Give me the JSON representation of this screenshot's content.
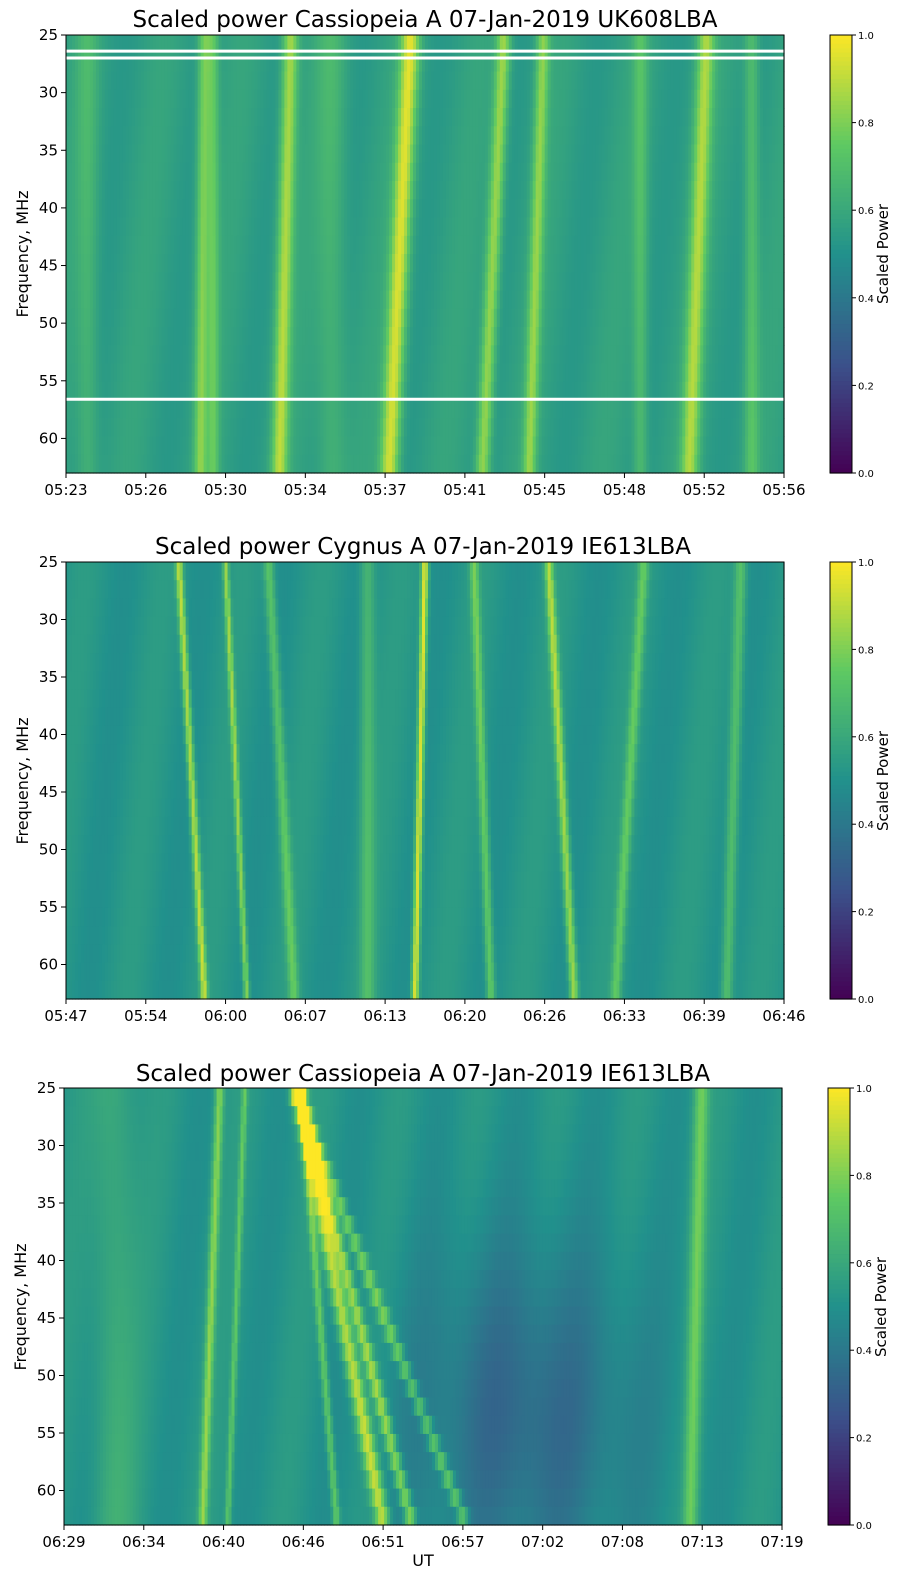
{
  "colormap": [
    "#440154",
    "#3b528b",
    "#21918c",
    "#5ec962",
    "#fde725"
  ],
  "chart_data": [
    {
      "type": "heatmap",
      "title": "Scaled power Cassiopeia A 07-Jan-2019 UK608LBA",
      "xlabel": "",
      "ylabel": "Frequency, MHz",
      "colorbar_label": "Scaled Power",
      "colorbar_ticks": [
        "0.0",
        "0.2",
        "0.4",
        "0.6",
        "0.8",
        "1.0"
      ],
      "clim": [
        0,
        1
      ],
      "ylim": [
        25,
        63
      ],
      "y_inverted": true,
      "y_ticks": [
        "25",
        "30",
        "35",
        "40",
        "45",
        "50",
        "55",
        "60"
      ],
      "x_ticks": [
        "05:23",
        "05:26",
        "05:30",
        "05:34",
        "05:37",
        "05:41",
        "05:45",
        "05:48",
        "05:52",
        "05:56"
      ],
      "background_level": 0.56,
      "rfi_lines_mhz": [
        26.4,
        27.0,
        56.6
      ],
      "stripes": [
        {
          "center": 0.03,
          "width": 0.015,
          "amp": 0.1,
          "slope": 0.0
        },
        {
          "center": 0.19,
          "width": 0.009,
          "amp": 0.25,
          "slope": -0.003
        },
        {
          "center": 0.205,
          "width": 0.008,
          "amp": 0.18,
          "slope": 0.0
        },
        {
          "center": 0.305,
          "width": 0.011,
          "amp": 0.32,
          "slope": -0.008
        },
        {
          "center": 0.37,
          "width": 0.02,
          "amp": 0.1,
          "slope": 0.0
        },
        {
          "center": 0.465,
          "width": 0.013,
          "amp": 0.38,
          "slope": -0.015
        },
        {
          "center": 0.595,
          "width": 0.01,
          "amp": 0.3,
          "slope": -0.015
        },
        {
          "center": 0.655,
          "width": 0.009,
          "amp": 0.26,
          "slope": -0.01
        },
        {
          "center": 0.8,
          "width": 0.01,
          "amp": 0.14,
          "slope": 0.0
        },
        {
          "center": 0.88,
          "width": 0.012,
          "amp": 0.3,
          "slope": -0.012
        },
        {
          "center": 0.955,
          "width": 0.01,
          "amp": 0.15,
          "slope": 0.0
        }
      ]
    },
    {
      "type": "heatmap",
      "title": "Scaled power Cygnus A 07-Jan-2019 IE613LBA",
      "xlabel": "",
      "ylabel": "Frequency, MHz",
      "colorbar_label": "Scaled Power",
      "colorbar_ticks": [
        "0.0",
        "0.2",
        "0.4",
        "0.6",
        "0.8",
        "1.0"
      ],
      "clim": [
        0,
        1
      ],
      "ylim": [
        25,
        63
      ],
      "y_inverted": true,
      "y_ticks": [
        "25",
        "30",
        "35",
        "40",
        "45",
        "50",
        "55",
        "60"
      ],
      "x_ticks": [
        "05:47",
        "05:54",
        "06:00",
        "06:07",
        "06:13",
        "06:20",
        "06:26",
        "06:33",
        "06:39",
        "06:46"
      ],
      "background_level": 0.52,
      "rfi_lines_mhz": [],
      "stripes": [
        {
          "center": 0.175,
          "width": 0.005,
          "amp": 0.38,
          "slope": 0.018
        },
        {
          "center": 0.237,
          "width": 0.004,
          "amp": 0.32,
          "slope": 0.015
        },
        {
          "center": 0.3,
          "width": 0.007,
          "amp": 0.22,
          "slope": 0.018
        },
        {
          "center": 0.42,
          "width": 0.01,
          "amp": 0.16,
          "slope": 0.0
        },
        {
          "center": 0.493,
          "width": 0.005,
          "amp": 0.45,
          "slope": -0.007
        },
        {
          "center": 0.58,
          "width": 0.006,
          "amp": 0.25,
          "slope": 0.012
        },
        {
          "center": 0.69,
          "width": 0.006,
          "amp": 0.35,
          "slope": 0.018
        },
        {
          "center": 0.785,
          "width": 0.007,
          "amp": 0.22,
          "slope": -0.02
        },
        {
          "center": 0.93,
          "width": 0.008,
          "amp": 0.2,
          "slope": -0.01
        }
      ]
    },
    {
      "type": "heatmap",
      "title": "Scaled power Cassiopeia A 07-Jan-2019 IE613LBA",
      "xlabel": "UT",
      "ylabel": "Frequency, MHz",
      "colorbar_label": "Scaled Power",
      "colorbar_ticks": [
        "0.0",
        "0.2",
        "0.4",
        "0.6",
        "0.8",
        "1.0"
      ],
      "clim": [
        0,
        1
      ],
      "ylim": [
        25,
        63
      ],
      "y_inverted": true,
      "y_ticks": [
        "25",
        "30",
        "35",
        "40",
        "45",
        "50",
        "55",
        "60"
      ],
      "x_ticks": [
        "06:29",
        "06:34",
        "06:40",
        "06:46",
        "06:51",
        "06:57",
        "07:02",
        "07:08",
        "07:13",
        "07:19"
      ],
      "background_level": 0.52,
      "rfi_lines_mhz": [],
      "stripes": [
        {
          "center": 0.07,
          "width": 0.03,
          "amp": 0.1,
          "slope": 0.0
        },
        {
          "center": 0.205,
          "width": 0.006,
          "amp": 0.3,
          "slope": -0.012
        },
        {
          "center": 0.24,
          "width": 0.004,
          "amp": 0.22,
          "slope": -0.012
        },
        {
          "center": 0.355,
          "width": 0.005,
          "amp": 0.25,
          "slope": 0.025
        },
        {
          "center": 0.385,
          "width": 0.01,
          "amp": 0.4,
          "slope": 0.06
        },
        {
          "center": 0.405,
          "width": 0.008,
          "amp": 0.35,
          "slope": 0.08
        },
        {
          "center": 0.44,
          "width": 0.008,
          "amp": 0.28,
          "slope": 0.12
        },
        {
          "center": 0.88,
          "width": 0.01,
          "amp": 0.25,
          "slope": -0.008
        }
      ],
      "dark_zone": {
        "center_x": 0.64,
        "center_y": 0.75,
        "rx": 0.16,
        "ry": 0.4,
        "depth": 0.18
      }
    }
  ]
}
